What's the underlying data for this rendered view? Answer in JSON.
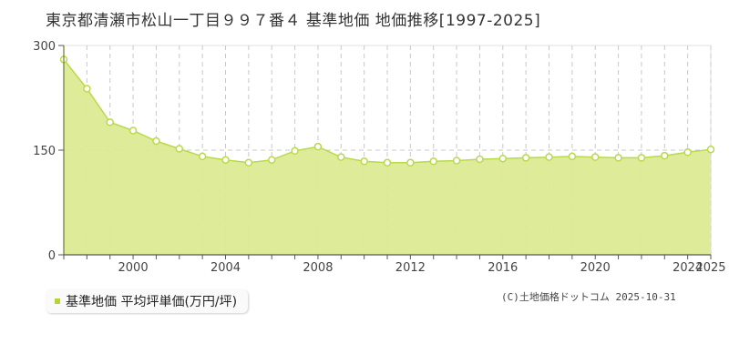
{
  "title": "東京都清瀬市松山一丁目９９７番４ 基準地価 地価推移[1997-2025]",
  "legend": {
    "label": "基準地価 平均坪単価(万円/坪)",
    "swatch_color": "#b5d531"
  },
  "copyright": "(C)土地価格ドットコム 2025-10-31",
  "colors": {
    "fill": "#dceb93",
    "line": "#b9d94c",
    "marker_stroke": "#b9d94c",
    "marker_fill": "#ffffff"
  },
  "chart_data": {
    "type": "area",
    "title": "東京都清瀬市松山一丁目９９７番４ 基準地価 地価推移[1997-2025]",
    "xlabel": "",
    "ylabel": "",
    "ylim": [
      0,
      300
    ],
    "yticks": [
      0,
      150,
      300
    ],
    "xticks": [
      2000,
      2004,
      2008,
      2012,
      2016,
      2020,
      2024,
      2025
    ],
    "grid": true,
    "legend_position": "bottom-left",
    "series": [
      {
        "name": "基準地価 平均坪単価(万円/坪)",
        "x": [
          1997,
          1998,
          1999,
          2000,
          2001,
          2002,
          2003,
          2004,
          2005,
          2006,
          2007,
          2008,
          2009,
          2010,
          2011,
          2012,
          2013,
          2014,
          2015,
          2016,
          2017,
          2018,
          2019,
          2020,
          2021,
          2022,
          2023,
          2024,
          2025
        ],
        "values": [
          280,
          238,
          190,
          178,
          163,
          152,
          141,
          136,
          132,
          136,
          149,
          155,
          140,
          134,
          132,
          132,
          134,
          135,
          137,
          138,
          139,
          140,
          141,
          140,
          139,
          139,
          142,
          147,
          151
        ]
      }
    ]
  }
}
